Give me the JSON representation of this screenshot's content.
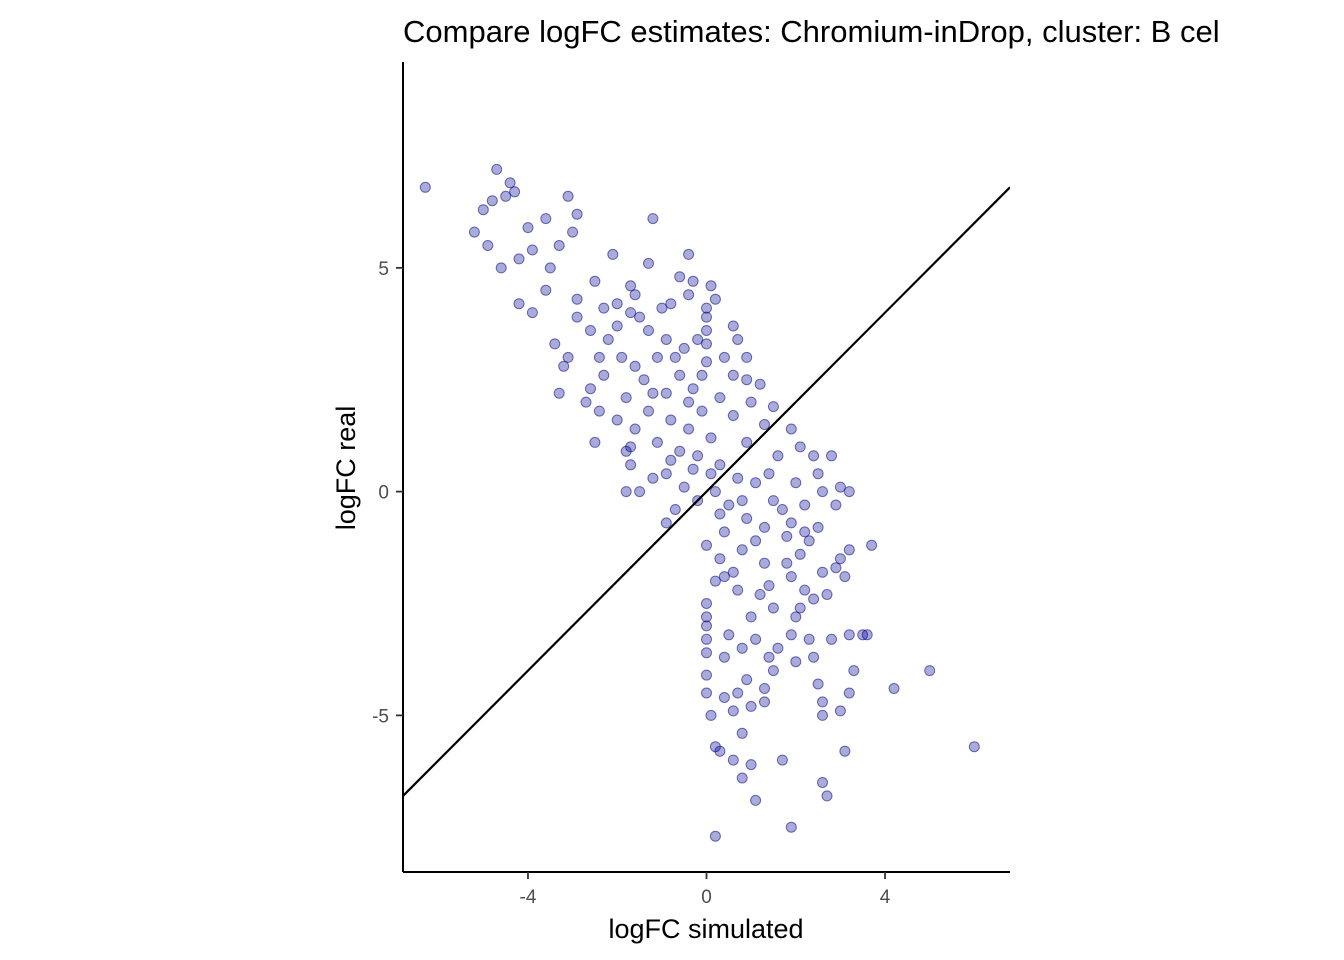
{
  "chart_data": {
    "type": "scatter",
    "title": "Compare logFC estimates: Chromium-inDrop, cluster: B cel",
    "xlabel": "logFC simulated",
    "ylabel": "logFC real",
    "xlim": [
      -6.8,
      6.8
    ],
    "ylim": [
      -8.5,
      9.6
    ],
    "x_ticks": [
      -4,
      0,
      4
    ],
    "x_tick_labels": [
      "-4",
      "0",
      "4"
    ],
    "y_ticks": [
      -5,
      0,
      5
    ],
    "y_tick_labels": [
      "-5",
      "0",
      "5"
    ],
    "grid": false,
    "legend": "none",
    "point_color": "#00008b",
    "point_opacity": 0.33,
    "reference_line": {
      "slope": 1,
      "intercept": 0,
      "color": "#000000"
    },
    "points": [
      [
        -6.3,
        6.8
      ],
      [
        -4.7,
        7.2
      ],
      [
        -4.4,
        6.9
      ],
      [
        -4.3,
        6.7
      ],
      [
        -4.5,
        6.6
      ],
      [
        -4.8,
        6.5
      ],
      [
        -5.0,
        6.3
      ],
      [
        -5.2,
        5.8
      ],
      [
        -4.9,
        5.5
      ],
      [
        -4.6,
        5.0
      ],
      [
        -4.2,
        5.2
      ],
      [
        -4.0,
        5.9
      ],
      [
        -3.6,
        6.1
      ],
      [
        -3.1,
        6.6
      ],
      [
        -2.9,
        6.2
      ],
      [
        -3.0,
        5.8
      ],
      [
        -3.9,
        5.4
      ],
      [
        -3.5,
        5.0
      ],
      [
        -3.3,
        5.5
      ],
      [
        -4.2,
        4.2
      ],
      [
        -2.1,
        5.3
      ],
      [
        -1.2,
        6.1
      ],
      [
        -1.3,
        5.1
      ],
      [
        -0.4,
        5.3
      ],
      [
        -0.3,
        4.7
      ],
      [
        -0.6,
        4.8
      ],
      [
        -0.4,
        4.4
      ],
      [
        0.1,
        4.6
      ],
      [
        0.2,
        4.3
      ],
      [
        0.6,
        3.7
      ],
      [
        0.7,
        3.4
      ],
      [
        0.9,
        3.0
      ],
      [
        1.2,
        2.4
      ],
      [
        1.5,
        1.9
      ],
      [
        1.9,
        1.4
      ],
      [
        2.1,
        1.0
      ],
      [
        2.4,
        0.8
      ],
      [
        2.8,
        0.8
      ],
      [
        3.0,
        0.1
      ],
      [
        3.2,
        0.0
      ],
      [
        2.9,
        -0.3
      ],
      [
        3.7,
        -1.2
      ],
      [
        3.2,
        -1.3
      ],
      [
        3.0,
        -1.5
      ],
      [
        2.9,
        -1.7
      ],
      [
        3.1,
        -1.9
      ],
      [
        2.7,
        -2.3
      ],
      [
        2.2,
        -2.2
      ],
      [
        -3.4,
        3.3
      ],
      [
        -3.2,
        2.8
      ],
      [
        -3.3,
        2.2
      ],
      [
        -2.7,
        2.0
      ],
      [
        -2.4,
        1.8
      ],
      [
        -2.5,
        1.1
      ],
      [
        -1.8,
        0.9
      ],
      [
        -1.7,
        0.6
      ],
      [
        -1.2,
        0.3
      ],
      [
        -1.8,
        0.0
      ],
      [
        -1.5,
        0.0
      ],
      [
        -0.9,
        -0.7
      ],
      [
        -0.7,
        -0.4
      ],
      [
        -2.4,
        3.0
      ],
      [
        -2.0,
        4.2
      ],
      [
        -1.7,
        4.0
      ],
      [
        -2.9,
        4.3
      ],
      [
        -2.5,
        4.7
      ],
      [
        -1.7,
        4.6
      ],
      [
        -1.6,
        4.4
      ],
      [
        -1.0,
        4.1
      ],
      [
        -0.8,
        4.2
      ],
      [
        0.0,
        4.1
      ],
      [
        0.0,
        3.9
      ],
      [
        0.0,
        3.6
      ],
      [
        0.0,
        3.3
      ],
      [
        0.0,
        2.9
      ],
      [
        0.0,
        -2.5
      ],
      [
        0.0,
        -2.8
      ],
      [
        0.0,
        -3.0
      ],
      [
        0.0,
        -3.3
      ],
      [
        0.0,
        -3.6
      ],
      [
        0.0,
        -4.1
      ],
      [
        0.0,
        -4.5
      ],
      [
        0.1,
        -5.0
      ],
      [
        0.2,
        -5.7
      ],
      [
        0.3,
        -5.8
      ],
      [
        0.8,
        -5.4
      ],
      [
        0.6,
        -6.0
      ],
      [
        1.0,
        -6.1
      ],
      [
        0.8,
        -6.4
      ],
      [
        1.1,
        -6.9
      ],
      [
        1.9,
        -7.5
      ],
      [
        0.2,
        -7.7
      ],
      [
        2.6,
        -6.5
      ],
      [
        2.7,
        -6.8
      ],
      [
        3.1,
        -5.8
      ],
      [
        1.7,
        -6.0
      ],
      [
        2.6,
        -4.7
      ],
      [
        3.2,
        -4.5
      ],
      [
        3.0,
        -4.9
      ],
      [
        2.6,
        -5.0
      ],
      [
        2.5,
        -4.3
      ],
      [
        3.3,
        -4.0
      ],
      [
        3.5,
        -3.2
      ],
      [
        3.2,
        -3.2
      ],
      [
        2.8,
        -3.3
      ],
      [
        2.3,
        -3.3
      ],
      [
        1.9,
        -3.2
      ],
      [
        2.4,
        -3.7
      ],
      [
        2.0,
        -3.8
      ],
      [
        1.6,
        -3.5
      ],
      [
        1.5,
        -4.0
      ],
      [
        1.3,
        -4.4
      ],
      [
        0.9,
        -4.2
      ],
      [
        0.7,
        -4.5
      ],
      [
        0.6,
        -4.9
      ],
      [
        0.4,
        -4.6
      ],
      [
        1.0,
        -4.8
      ],
      [
        1.3,
        -4.7
      ],
      [
        0.4,
        -3.7
      ],
      [
        0.8,
        -3.5
      ],
      [
        1.1,
        -3.3
      ],
      [
        1.4,
        -3.7
      ],
      [
        0.5,
        -3.2
      ],
      [
        2.1,
        -2.6
      ],
      [
        1.5,
        -2.6
      ],
      [
        1.0,
        -2.8
      ],
      [
        4.2,
        -4.4
      ],
      [
        5.0,
        -4.0
      ],
      [
        6.0,
        -5.7
      ],
      [
        3.6,
        -3.2
      ],
      [
        1.4,
        -2.1
      ],
      [
        1.9,
        -1.9
      ],
      [
        2.1,
        -1.4
      ],
      [
        2.6,
        -1.8
      ],
      [
        2.4,
        -2.4
      ],
      [
        2.0,
        -2.8
      ],
      [
        1.2,
        -2.3
      ],
      [
        0.7,
        -2.2
      ],
      [
        0.4,
        -1.9
      ],
      [
        2.5,
        -0.8
      ],
      [
        2.3,
        -1.1
      ],
      [
        1.8,
        -1.0
      ],
      [
        1.3,
        -1.6
      ],
      [
        0.8,
        -1.3
      ],
      [
        0.4,
        -0.9
      ],
      [
        0.3,
        -1.5
      ],
      [
        2.5,
        0.4
      ],
      [
        2.6,
        0.0
      ],
      [
        2.2,
        -0.3
      ],
      [
        1.7,
        -0.4
      ],
      [
        1.3,
        -0.8
      ],
      [
        0.9,
        -0.6
      ],
      [
        0.5,
        -0.3
      ],
      [
        1.6,
        0.8
      ],
      [
        2.0,
        0.2
      ],
      [
        1.1,
        0.2
      ],
      [
        0.7,
        0.3
      ],
      [
        0.3,
        0.6
      ],
      [
        0.9,
        1.1
      ],
      [
        1.3,
        1.5
      ],
      [
        0.6,
        1.7
      ],
      [
        0.3,
        2.1
      ],
      [
        0.6,
        2.6
      ],
      [
        1.0,
        2.0
      ],
      [
        0.4,
        3.0
      ],
      [
        0.9,
        2.5
      ],
      [
        -0.2,
        3.4
      ],
      [
        -0.5,
        3.2
      ],
      [
        -0.9,
        3.4
      ],
      [
        -1.3,
        3.6
      ],
      [
        -1.1,
        3.0
      ],
      [
        -0.6,
        2.6
      ],
      [
        -0.3,
        2.3
      ],
      [
        -0.9,
        2.2
      ],
      [
        -1.4,
        2.5
      ],
      [
        -1.9,
        3.0
      ],
      [
        -2.2,
        3.4
      ],
      [
        -2.6,
        3.6
      ],
      [
        -2.9,
        3.9
      ],
      [
        -2.3,
        2.6
      ],
      [
        -1.8,
        2.1
      ],
      [
        -1.3,
        1.8
      ],
      [
        -0.8,
        1.6
      ],
      [
        -0.4,
        1.4
      ],
      [
        -1.1,
        1.1
      ],
      [
        -1.6,
        1.4
      ],
      [
        -2.0,
        1.6
      ],
      [
        -0.6,
        0.9
      ],
      [
        -0.2,
        0.8
      ],
      [
        -0.9,
        0.4
      ],
      [
        -0.5,
        0.1
      ],
      [
        -0.2,
        -0.2
      ],
      [
        0.2,
        0.0
      ],
      [
        -0.3,
        0.5
      ],
      [
        0.1,
        1.2
      ],
      [
        -0.1,
        1.8
      ],
      [
        0.3,
        -0.5
      ],
      [
        0.0,
        -1.2
      ],
      [
        0.2,
        -2.0
      ],
      [
        -0.1,
        2.6
      ],
      [
        -1.5,
        3.9
      ],
      [
        -2.3,
        4.1
      ],
      [
        -3.6,
        4.5
      ],
      [
        -3.9,
        4.0
      ],
      [
        -3.1,
        3.0
      ],
      [
        -2.0,
        3.7
      ],
      [
        -2.6,
        2.3
      ],
      [
        -1.6,
        2.8
      ],
      [
        -0.7,
        3.0
      ],
      [
        -1.2,
        2.2
      ],
      [
        -0.4,
        2.0
      ],
      [
        -1.7,
        1.0
      ],
      [
        -0.8,
        0.7
      ],
      [
        0.1,
        0.4
      ],
      [
        1.5,
        -0.2
      ],
      [
        1.9,
        -0.7
      ],
      [
        1.1,
        -1.1
      ],
      [
        0.6,
        -1.8
      ],
      [
        1.8,
        -1.6
      ],
      [
        2.2,
        -0.9
      ],
      [
        1.4,
        0.4
      ],
      [
        0.8,
        -0.2
      ]
    ]
  }
}
